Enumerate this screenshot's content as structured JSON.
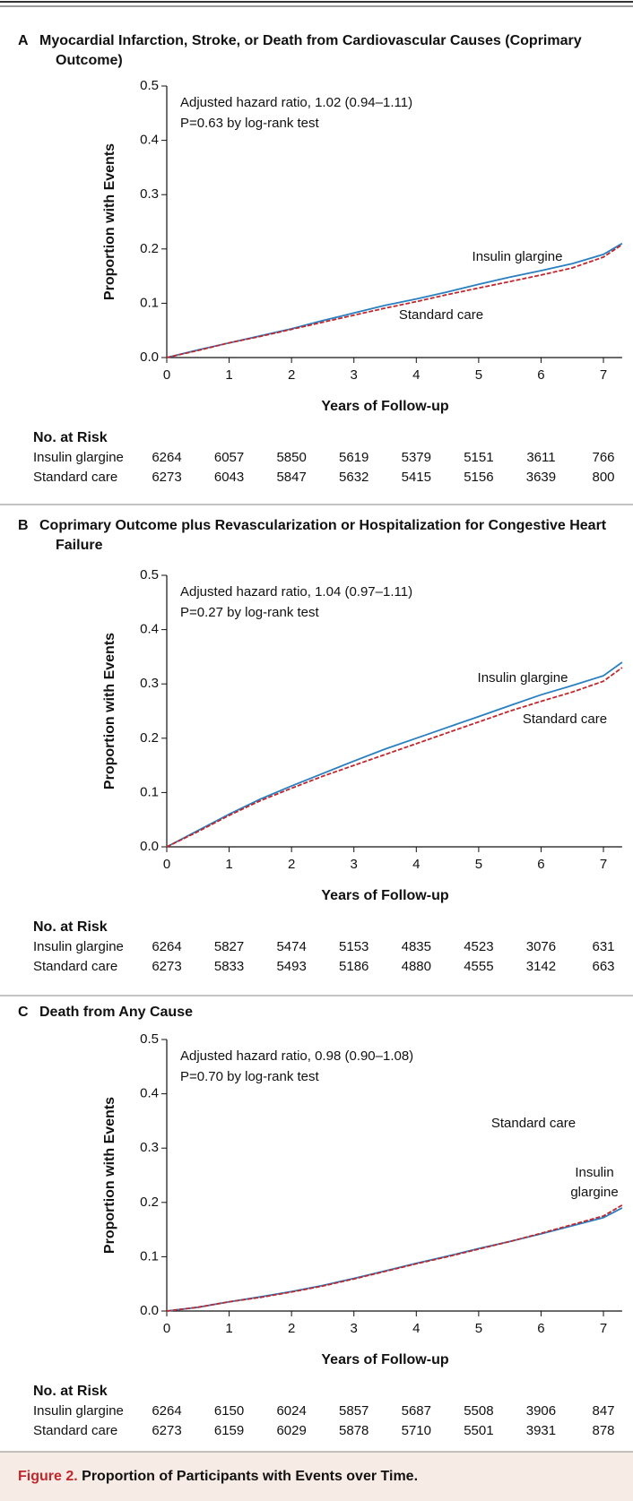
{
  "chart_data": [
    {
      "type": "line",
      "panel": "A",
      "title": "Myocardial Infarction, Stroke, or Death from Cardiovascular Causes (Coprimary Outcome)",
      "annotations": [
        "Adjusted hazard ratio, 1.02 (0.94–1.11)",
        "P=0.63 by log-rank test"
      ],
      "xlabel": "Years of Follow-up",
      "ylabel": "Proportion with Events",
      "x": [
        0,
        0.5,
        1,
        1.5,
        2,
        2.5,
        3,
        3.5,
        4,
        4.5,
        5,
        5.5,
        6,
        6.5,
        7,
        7.3
      ],
      "series": [
        {
          "name": "Insulin glargine",
          "color": "#2a7fc0",
          "line_style": "solid",
          "values": [
            0,
            0.014,
            0.027,
            0.04,
            0.053,
            0.068,
            0.082,
            0.096,
            0.108,
            0.121,
            0.135,
            0.148,
            0.16,
            0.173,
            0.19,
            0.21
          ]
        },
        {
          "name": "Standard care",
          "color": "#c0272d",
          "line_style": "dashed",
          "values": [
            0,
            0.013,
            0.027,
            0.039,
            0.052,
            0.065,
            0.078,
            0.091,
            0.103,
            0.116,
            0.128,
            0.14,
            0.152,
            0.165,
            0.185,
            0.208
          ]
        }
      ],
      "xlim": [
        0,
        7.3
      ],
      "ylim": [
        0,
        0.5
      ],
      "xticks": [
        0,
        1,
        2,
        3,
        4,
        5,
        6,
        7
      ],
      "yticks": [
        {
          "value": 0,
          "label": "0.0"
        },
        0.1,
        0.2,
        0.3,
        0.4,
        0.5
      ],
      "at_risk": {
        "title": "No. at Risk",
        "rows": [
          {
            "name": "Insulin glargine",
            "values": [
              6264,
              6057,
              5850,
              5619,
              5379,
              5151,
              3611,
              766
            ]
          },
          {
            "name": "Standard care",
            "values": [
              6273,
              6043,
              5847,
              5632,
              5415,
              5156,
              3639,
              800
            ]
          }
        ]
      }
    },
    {
      "type": "line",
      "panel": "B",
      "title": "Coprimary Outcome plus Revascularization or Hospitalization for Congestive Heart Failure",
      "annotations": [
        "Adjusted hazard ratio, 1.04 (0.97–1.11)",
        "P=0.27 by log-rank test"
      ],
      "xlabel": "Years of Follow-up",
      "ylabel": "Proportion with Events",
      "x": [
        0,
        0.5,
        1,
        1.5,
        2,
        2.5,
        3,
        3.5,
        4,
        4.5,
        5,
        5.5,
        6,
        6.5,
        7,
        7.3
      ],
      "series": [
        {
          "name": "Insulin glargine",
          "color": "#2a7fc0",
          "line_style": "solid",
          "values": [
            0,
            0.03,
            0.06,
            0.088,
            0.112,
            0.135,
            0.158,
            0.18,
            0.2,
            0.22,
            0.24,
            0.26,
            0.28,
            0.297,
            0.315,
            0.34
          ]
        },
        {
          "name": "Standard care",
          "color": "#c0272d",
          "line_style": "dashed",
          "values": [
            0,
            0.028,
            0.058,
            0.085,
            0.108,
            0.13,
            0.15,
            0.17,
            0.19,
            0.21,
            0.23,
            0.25,
            0.268,
            0.285,
            0.305,
            0.33
          ]
        }
      ],
      "xlim": [
        0,
        7.3
      ],
      "ylim": [
        0,
        0.5
      ],
      "xticks": [
        0,
        1,
        2,
        3,
        4,
        5,
        6,
        7
      ],
      "yticks": [
        {
          "value": 0,
          "label": "0.0"
        },
        0.1,
        0.2,
        0.3,
        0.4,
        0.5
      ],
      "at_risk": {
        "title": "No. at Risk",
        "rows": [
          {
            "name": "Insulin glargine",
            "values": [
              6264,
              5827,
              5474,
              5153,
              4835,
              4523,
              3076,
              631
            ]
          },
          {
            "name": "Standard care",
            "values": [
              6273,
              5833,
              5493,
              5186,
              4880,
              4555,
              3142,
              663
            ]
          }
        ]
      }
    },
    {
      "type": "line",
      "panel": "C",
      "title": "Death from Any Cause",
      "annotations": [
        "Adjusted hazard ratio, 0.98 (0.90–1.08)",
        "P=0.70 by log-rank test"
      ],
      "xlabel": "Years of Follow-up",
      "ylabel": "Proportion with Events",
      "x": [
        0,
        0.5,
        1,
        1.5,
        2,
        2.5,
        3,
        3.5,
        4,
        4.5,
        5,
        5.5,
        6,
        6.5,
        7,
        7.3
      ],
      "series": [
        {
          "name": "Insulin glargine",
          "color": "#2a7fc0",
          "line_style": "solid",
          "values": [
            0,
            0.007,
            0.017,
            0.026,
            0.036,
            0.047,
            0.06,
            0.074,
            0.088,
            0.101,
            0.115,
            0.128,
            0.142,
            0.157,
            0.172,
            0.19
          ]
        },
        {
          "name": "Standard care",
          "color": "#c0272d",
          "line_style": "dashed",
          "values": [
            0,
            0.007,
            0.017,
            0.025,
            0.035,
            0.046,
            0.059,
            0.073,
            0.087,
            0.1,
            0.114,
            0.128,
            0.143,
            0.159,
            0.175,
            0.195
          ]
        }
      ],
      "xlim": [
        0,
        7.3
      ],
      "ylim": [
        0,
        0.5
      ],
      "xticks": [
        0,
        1,
        2,
        3,
        4,
        5,
        6,
        7
      ],
      "yticks": [
        {
          "value": 0,
          "label": "0.0"
        },
        0.1,
        0.2,
        0.3,
        0.4,
        0.5
      ],
      "at_risk": {
        "title": "No. at Risk",
        "rows": [
          {
            "name": "Insulin glargine",
            "values": [
              6264,
              6150,
              6024,
              5857,
              5687,
              5508,
              3906,
              847
            ]
          },
          {
            "name": "Standard care",
            "values": [
              6273,
              6159,
              6029,
              5878,
              5710,
              5501,
              3931,
              878
            ]
          }
        ]
      }
    }
  ],
  "caption": {
    "label": "Figure 2.",
    "text": "Proportion of Participants with Events over Time."
  }
}
